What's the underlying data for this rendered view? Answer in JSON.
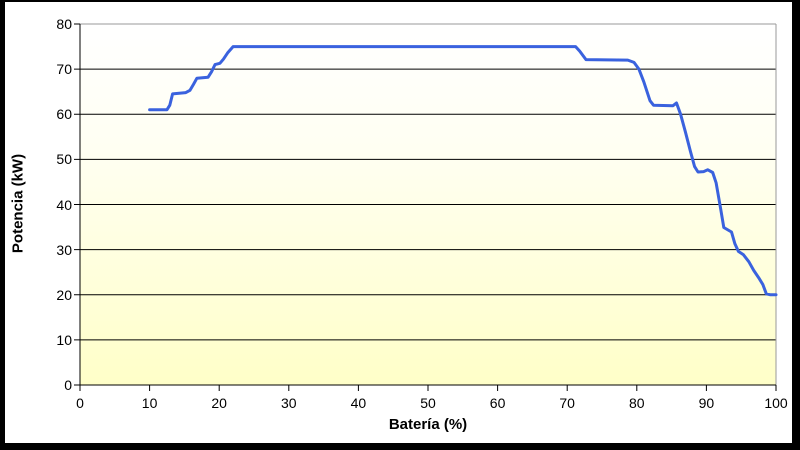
{
  "chart_data": {
    "type": "line",
    "title": "",
    "xlabel": "Batería (%)",
    "ylabel": "Potencia (kW)",
    "xlim": [
      0,
      100
    ],
    "ylim": [
      0,
      80
    ],
    "xticks": [
      0,
      10,
      20,
      30,
      40,
      50,
      60,
      70,
      80,
      90,
      100
    ],
    "yticks": [
      0,
      10,
      20,
      30,
      40,
      50,
      60,
      70,
      80
    ],
    "grid": "horizontal-black",
    "legend": "none",
    "plot_border_top_right_color": "#9a9a9a",
    "axis_color": "#000000",
    "line_color": "#3a62de",
    "line_width": 3,
    "plot_bg_gradient_top": "#ffffff",
    "plot_bg_gradient_bottom": "#ffffc8",
    "frame_color": "#000000",
    "series": [
      {
        "name": "Potencia",
        "points": [
          [
            10,
            61
          ],
          [
            12.5,
            61
          ],
          [
            12.9,
            62
          ],
          [
            13.3,
            64.5
          ],
          [
            15.2,
            64.8
          ],
          [
            15.8,
            65.3
          ],
          [
            16.3,
            66.6
          ],
          [
            16.8,
            68
          ],
          [
            18.4,
            68.2
          ],
          [
            18.9,
            69.4
          ],
          [
            19.4,
            71
          ],
          [
            20.1,
            71.3
          ],
          [
            20.6,
            72.2
          ],
          [
            21.2,
            73.6
          ],
          [
            22,
            75
          ],
          [
            71.2,
            75
          ],
          [
            71.8,
            74
          ],
          [
            72.7,
            72.1
          ],
          [
            78.7,
            72
          ],
          [
            79.6,
            71.5
          ],
          [
            80.3,
            70
          ],
          [
            81,
            67.2
          ],
          [
            81.9,
            63
          ],
          [
            82.4,
            62
          ],
          [
            85.2,
            61.9
          ],
          [
            85.7,
            62.5
          ],
          [
            86.3,
            60
          ],
          [
            87,
            56
          ],
          [
            87.7,
            51.8
          ],
          [
            88.3,
            48.4
          ],
          [
            88.8,
            47.2
          ],
          [
            89.6,
            47.3
          ],
          [
            90.2,
            47.7
          ],
          [
            90.9,
            47.1
          ],
          [
            91.4,
            44.8
          ],
          [
            92,
            39.5
          ],
          [
            92.5,
            34.9
          ],
          [
            93.6,
            33.9
          ],
          [
            94.1,
            31.3
          ],
          [
            94.6,
            29.6
          ],
          [
            95.3,
            28.9
          ],
          [
            96.1,
            27.3
          ],
          [
            96.8,
            25.4
          ],
          [
            97.5,
            23.8
          ],
          [
            98.1,
            22.3
          ],
          [
            98.6,
            20.2
          ],
          [
            99.2,
            20
          ],
          [
            100,
            20
          ]
        ]
      }
    ]
  }
}
